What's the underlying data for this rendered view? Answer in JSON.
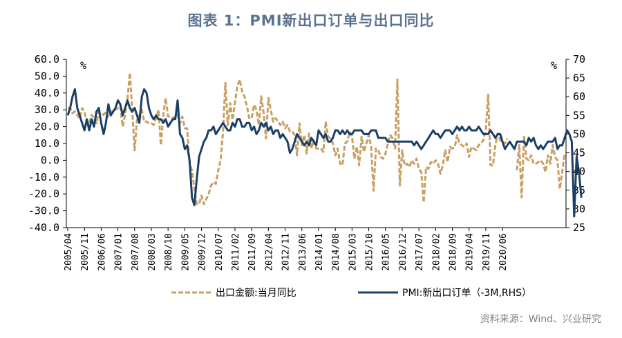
{
  "title": "图表 1：PMI新出口订单与出口同比",
  "source": "资料来源：Wind、兴业研究",
  "chart_data": {
    "type": "line",
    "x_labels": [
      "2005/04",
      "2005/11",
      "2006/06",
      "2007/01",
      "2007/08",
      "2008/03",
      "2008/10",
      "2009/05",
      "2009/12",
      "2010/07",
      "2011/02",
      "2011/09",
      "2012/04",
      "2012/11",
      "2013/06",
      "2014/01",
      "2014/08",
      "2015/03",
      "2015/10",
      "2016/05",
      "2016/12",
      "2017/07",
      "2018/02",
      "2018/09",
      "2019/04",
      "2019/11",
      "2020/06"
    ],
    "left_axis": {
      "unit": "%",
      "min": -40,
      "max": 60,
      "step": 10,
      "tick_labels": [
        "60.0",
        "50.0",
        "40.0",
        "30.0",
        "20.0",
        "10.0",
        "0.0",
        "-10.0",
        "-20.0",
        "-30.0",
        "-40.0"
      ]
    },
    "right_axis": {
      "unit": "%",
      "min": 25,
      "max": 70,
      "step": 5,
      "tick_labels": [
        "70",
        "65",
        "60",
        "55",
        "50",
        "45",
        "40",
        "35",
        "30",
        "25"
      ]
    },
    "legend_position": "bottom",
    "series": [
      {
        "name": "出口金额:当月同比",
        "axis": "left",
        "color": "#c8a064",
        "style": "dashed",
        "values": [
          31,
          31,
          28,
          29,
          27,
          25,
          31,
          29,
          22,
          22,
          27,
          25,
          22,
          29,
          28,
          27,
          29,
          26,
          28,
          30,
          30,
          31,
          32,
          20,
          27,
          36,
          52,
          30,
          6,
          24,
          27,
          30,
          23,
          23,
          22,
          22,
          21,
          25,
          30,
          9,
          27,
          37,
          26,
          26,
          25,
          26,
          27,
          22,
          26,
          19,
          19,
          -2,
          -6,
          -17,
          -26,
          -26,
          -21,
          -26,
          -23,
          -20,
          -15,
          -13,
          -14,
          -6,
          0,
          17,
          46,
          21,
          34,
          24,
          34,
          44,
          48,
          41,
          38,
          32,
          25,
          25,
          33,
          30,
          21,
          38,
          28,
          13,
          37,
          30,
          23,
          25,
          23,
          21,
          23,
          19,
          21,
          17,
          17,
          15,
          3,
          22,
          9,
          15,
          4,
          16,
          7,
          12,
          7,
          7,
          7,
          5,
          23,
          14,
          13,
          10,
          3,
          7,
          -2,
          -3,
          10,
          11,
          17,
          14,
          1,
          8,
          -3,
          14,
          5,
          10,
          15,
          8,
          -18,
          7,
          6,
          2,
          1,
          4,
          10,
          15,
          13,
          7,
          48,
          -15,
          6,
          -3,
          -2,
          -4,
          0,
          -2,
          1,
          -5,
          -7,
          -25,
          -4,
          -5,
          -1,
          -2,
          0,
          -2,
          -8,
          -3,
          6,
          -1,
          8,
          7,
          8,
          15,
          10,
          9,
          8,
          10,
          2,
          8,
          7,
          6,
          9,
          10,
          12,
          18,
          39,
          -3,
          -3,
          9,
          16,
          12,
          10,
          10,
          13,
          13,
          5,
          -5,
          -6,
          9,
          -22,
          14,
          1,
          0,
          3,
          -2,
          -2,
          -1,
          0,
          -2,
          -7,
          3,
          -2,
          9,
          2,
          0,
          -17,
          -7,
          4
        ],
        "gaps": [
          [
            185,
            187
          ]
        ]
      },
      {
        "name": "PMI:新出口订单（-3M,RHS）",
        "axis": "right",
        "color": "#1b3f66",
        "style": "solid",
        "values": [
          55,
          57,
          60,
          62,
          57,
          55,
          53,
          51,
          54,
          51,
          54,
          52,
          56,
          57,
          53,
          50,
          53,
          58,
          55,
          56,
          57,
          59,
          58,
          55,
          57,
          59,
          57,
          56,
          57,
          55,
          53,
          60,
          62,
          61,
          57,
          55,
          54,
          55,
          54,
          54,
          53,
          54,
          52,
          53,
          54,
          54,
          59,
          50,
          49,
          46,
          47,
          43,
          33,
          31,
          38,
          44,
          46,
          48,
          49,
          51,
          51,
          52,
          50,
          51,
          52,
          53,
          52,
          51,
          51,
          53,
          52,
          54,
          54,
          52,
          52,
          53,
          53,
          51,
          52,
          50,
          51,
          53,
          52,
          53,
          51,
          52,
          50,
          51,
          51,
          49,
          50,
          49,
          48,
          45,
          46,
          48,
          50,
          49,
          48,
          47,
          48,
          47,
          49,
          48,
          47,
          51,
          50,
          49,
          50,
          48,
          48,
          49,
          51,
          51,
          50,
          51,
          50,
          51,
          50,
          50,
          51,
          51,
          51,
          51,
          50,
          50,
          50,
          51,
          51,
          51,
          49,
          49,
          49,
          49,
          48,
          48,
          48,
          48,
          48,
          48,
          48,
          48,
          48,
          48,
          48,
          47,
          48,
          47,
          46,
          47,
          48,
          49,
          50,
          51,
          50,
          50,
          49,
          50,
          51,
          51,
          51,
          50,
          51,
          52,
          51,
          52,
          51,
          51,
          52,
          51,
          51,
          51,
          52,
          51,
          50,
          50,
          50,
          51,
          50,
          49,
          50,
          50,
          48,
          46,
          47,
          48,
          47,
          46,
          48,
          48,
          48,
          48,
          47,
          49,
          48,
          49,
          47,
          46,
          47,
          46,
          47,
          48,
          48,
          48,
          49,
          46,
          47,
          47,
          49,
          51,
          50,
          48,
          28,
          44,
          40,
          33
        ]
      }
    ]
  }
}
